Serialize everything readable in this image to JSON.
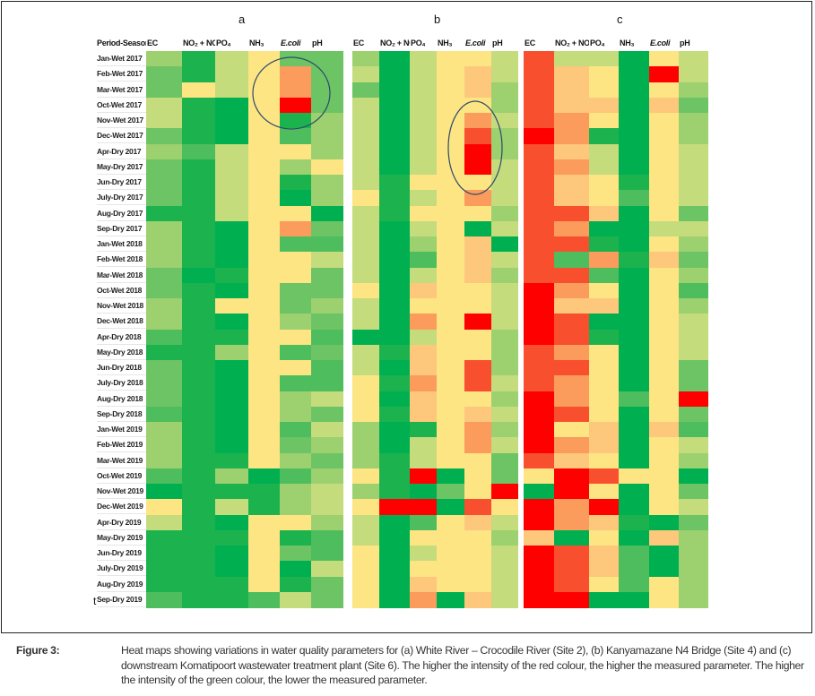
{
  "chart_data": {
    "type": "heatmap",
    "value_scale": {
      "meaning": "relative intensity; green = lower measured parameter, red = higher measured parameter",
      "min": 0,
      "max": 10,
      "colors": [
        "#00b050",
        "#1cb34f",
        "#4ebd5d",
        "#6cc465",
        "#9dd06e",
        "#c5dc7d",
        "#fde583",
        "#fdc77c",
        "#fb9b5c",
        "#f8502f",
        "#ff0000"
      ]
    },
    "row_header": "Period-Season",
    "rows": [
      "Jan-Wet 2017",
      "Feb-Wet 2017",
      "Mar-Wet 2017",
      "Oct-Wet 2017",
      "Nov-Wet 2017",
      "Dec-Wet 2017",
      "Apr-Dry 2017",
      "May-Dry 2017",
      "Jun-Dry 2017",
      "July-Dry 2017",
      "Aug-Dry 2017",
      "Sep-Dry 2017",
      "Jan-Wet 2018",
      "Feb-Wet 2018",
      "Mar-Wet 2018",
      "Oct-Wet 2018",
      "Nov-Wet 2018",
      "Dec-Wet 2018",
      "Apr-Dry 2018",
      "May-Dry 2018",
      "Jun-Dry 2018",
      "July-Dry 2018",
      "Aug-Dry 2018",
      "Sep-Dry 2018",
      "Jan-Wet 2019",
      "Feb-Wet 2019",
      "Mar-Wet 2019",
      "Oct-Wet 2019",
      "Nov-Wet 2019",
      "Dec-Wet 2019",
      "Apr-Dry 2019",
      "May-Dry 2019",
      "Jun-Dry 2019",
      "July-Dry 2019",
      "Aug-Dry 2019",
      "Sep-Dry 2019"
    ],
    "panels": [
      {
        "title": "a",
        "columns": [
          "EC",
          "NO₂ + NO₃",
          "PO₄",
          "NH₃",
          "E.coli",
          "pH"
        ],
        "values": [
          [
            4,
            1,
            5,
            6,
            3,
            3
          ],
          [
            3,
            1,
            5,
            6,
            8,
            3
          ],
          [
            3,
            6,
            5,
            6,
            8,
            3
          ],
          [
            5,
            1,
            0,
            6,
            10,
            3
          ],
          [
            5,
            1,
            0,
            6,
            1,
            4
          ],
          [
            3,
            1,
            0,
            6,
            2,
            4
          ],
          [
            4,
            2,
            5,
            6,
            6,
            4
          ],
          [
            3,
            1,
            5,
            6,
            4,
            6
          ],
          [
            3,
            1,
            5,
            6,
            1,
            4
          ],
          [
            3,
            1,
            5,
            6,
            0,
            4
          ],
          [
            1,
            1,
            5,
            6,
            6,
            0
          ],
          [
            4,
            1,
            0,
            6,
            8,
            3
          ],
          [
            4,
            1,
            0,
            6,
            2,
            2
          ],
          [
            4,
            1,
            0,
            6,
            6,
            5
          ],
          [
            3,
            0,
            1,
            6,
            6,
            3
          ],
          [
            3,
            1,
            0,
            6,
            3,
            3
          ],
          [
            4,
            1,
            6,
            6,
            3,
            4
          ],
          [
            4,
            1,
            0,
            6,
            4,
            3
          ],
          [
            2,
            1,
            1,
            6,
            6,
            2
          ],
          [
            1,
            1,
            4,
            6,
            2,
            3
          ],
          [
            3,
            1,
            0,
            6,
            6,
            2
          ],
          [
            3,
            1,
            0,
            6,
            2,
            2
          ],
          [
            3,
            1,
            0,
            6,
            4,
            5
          ],
          [
            2,
            1,
            0,
            6,
            4,
            3
          ],
          [
            4,
            1,
            0,
            6,
            2,
            5
          ],
          [
            4,
            1,
            0,
            6,
            3,
            4
          ],
          [
            4,
            1,
            1,
            6,
            4,
            3
          ],
          [
            2,
            1,
            4,
            0,
            2,
            4
          ],
          [
            0,
            1,
            1,
            1,
            4,
            5
          ],
          [
            6,
            1,
            5,
            1,
            4,
            5
          ],
          [
            5,
            1,
            0,
            6,
            6,
            4
          ],
          [
            1,
            1,
            1,
            6,
            1,
            2
          ],
          [
            1,
            1,
            0,
            6,
            3,
            2
          ],
          [
            1,
            1,
            0,
            6,
            0,
            5
          ],
          [
            1,
            1,
            1,
            6,
            1,
            3
          ],
          [
            2,
            1,
            1,
            2,
            5,
            3
          ]
        ]
      },
      {
        "title": "b",
        "columns": [
          "EC",
          "NO₂ + NO₃",
          "PO₄",
          "NH₃",
          "E.coli",
          "pH"
        ],
        "values": [
          [
            4,
            0,
            5,
            6,
            6,
            5
          ],
          [
            5,
            0,
            5,
            6,
            7,
            5
          ],
          [
            3,
            0,
            5,
            6,
            7,
            4
          ],
          [
            5,
            0,
            5,
            6,
            6,
            4
          ],
          [
            5,
            0,
            5,
            6,
            8,
            5
          ],
          [
            5,
            0,
            5,
            6,
            9,
            4
          ],
          [
            5,
            0,
            5,
            6,
            10,
            4
          ],
          [
            5,
            0,
            5,
            6,
            10,
            5
          ],
          [
            5,
            1,
            6,
            6,
            6,
            5
          ],
          [
            6,
            1,
            5,
            6,
            8,
            5
          ],
          [
            5,
            1,
            6,
            6,
            6,
            4
          ],
          [
            5,
            0,
            5,
            6,
            0,
            5
          ],
          [
            5,
            0,
            4,
            6,
            7,
            0
          ],
          [
            5,
            0,
            2,
            6,
            7,
            5
          ],
          [
            5,
            0,
            5,
            6,
            7,
            4
          ],
          [
            6,
            0,
            7,
            6,
            6,
            5
          ],
          [
            5,
            0,
            6,
            6,
            6,
            5
          ],
          [
            5,
            0,
            8,
            6,
            10,
            5
          ],
          [
            0,
            0,
            5,
            6,
            6,
            4
          ],
          [
            5,
            1,
            7,
            6,
            6,
            4
          ],
          [
            5,
            0,
            7,
            6,
            9,
            4
          ],
          [
            6,
            1,
            8,
            6,
            9,
            5
          ],
          [
            6,
            0,
            7,
            6,
            6,
            4
          ],
          [
            6,
            1,
            7,
            6,
            7,
            5
          ],
          [
            4,
            0,
            1,
            6,
            8,
            4
          ],
          [
            4,
            0,
            5,
            6,
            8,
            5
          ],
          [
            4,
            1,
            5,
            6,
            6,
            3
          ],
          [
            6,
            1,
            10,
            0,
            6,
            3
          ],
          [
            4,
            1,
            0,
            3,
            6,
            10
          ],
          [
            6,
            10,
            10,
            0,
            9,
            6
          ],
          [
            5,
            0,
            2,
            6,
            7,
            5
          ],
          [
            5,
            0,
            6,
            6,
            6,
            4
          ],
          [
            6,
            0,
            5,
            6,
            6,
            5
          ],
          [
            6,
            0,
            6,
            6,
            6,
            5
          ],
          [
            6,
            0,
            7,
            6,
            6,
            5
          ],
          [
            6,
            0,
            8,
            0,
            7,
            5
          ]
        ]
      },
      {
        "title": "c",
        "columns": [
          "EC",
          "NO₂ + NO₃",
          "PO₄",
          "NH₃",
          "E.coli",
          "pH"
        ],
        "values": [
          [
            9,
            5,
            5,
            0,
            6,
            5
          ],
          [
            9,
            7,
            6,
            0,
            10,
            5
          ],
          [
            9,
            7,
            6,
            0,
            6,
            4
          ],
          [
            9,
            7,
            7,
            0,
            7,
            3
          ],
          [
            9,
            8,
            6,
            0,
            6,
            4
          ],
          [
            10,
            8,
            1,
            0,
            6,
            4
          ],
          [
            9,
            7,
            5,
            0,
            6,
            5
          ],
          [
            9,
            8,
            5,
            0,
            6,
            5
          ],
          [
            9,
            7,
            6,
            1,
            6,
            5
          ],
          [
            9,
            7,
            6,
            2,
            6,
            5
          ],
          [
            9,
            9,
            7,
            0,
            6,
            3
          ],
          [
            9,
            8,
            0,
            0,
            5,
            5
          ],
          [
            9,
            9,
            1,
            0,
            6,
            4
          ],
          [
            9,
            2,
            8,
            1,
            7,
            3
          ],
          [
            9,
            9,
            2,
            0,
            6,
            4
          ],
          [
            10,
            8,
            6,
            0,
            6,
            2
          ],
          [
            10,
            7,
            7,
            0,
            6,
            4
          ],
          [
            10,
            9,
            0,
            0,
            6,
            5
          ],
          [
            10,
            9,
            1,
            0,
            6,
            5
          ],
          [
            9,
            8,
            6,
            0,
            6,
            5
          ],
          [
            9,
            9,
            6,
            0,
            6,
            3
          ],
          [
            9,
            8,
            6,
            0,
            6,
            3
          ],
          [
            10,
            8,
            6,
            2,
            6,
            10
          ],
          [
            10,
            9,
            6,
            0,
            6,
            3
          ],
          [
            10,
            6,
            7,
            0,
            7,
            2
          ],
          [
            10,
            8,
            7,
            0,
            6,
            5
          ],
          [
            9,
            7,
            6,
            0,
            6,
            4
          ],
          [
            6,
            10,
            9,
            6,
            6,
            0
          ],
          [
            0,
            10,
            6,
            0,
            6,
            3
          ],
          [
            10,
            8,
            10,
            0,
            6,
            5
          ],
          [
            10,
            8,
            7,
            1,
            0,
            3
          ],
          [
            7,
            0,
            6,
            0,
            7,
            4
          ],
          [
            10,
            9,
            7,
            2,
            0,
            4
          ],
          [
            10,
            9,
            7,
            2,
            0,
            4
          ],
          [
            10,
            9,
            6,
            2,
            6,
            4
          ],
          [
            10,
            10,
            0,
            0,
            6,
            4
          ]
        ]
      }
    ]
  },
  "stray_mark": "t",
  "caption": {
    "label": "Figure 3:",
    "text": "Heat maps showing variations in water quality parameters for (a) White River – Crocodile River (Site 2), (b) Kanyamazane N4 Bridge (Site 4) and (c) downstream Komatipoort wastewater treatment plant (Site 6). The higher the intensity of the red colour, the higher the measured parameter. The higher the intensity of the green colour, the lower the measured parameter."
  }
}
